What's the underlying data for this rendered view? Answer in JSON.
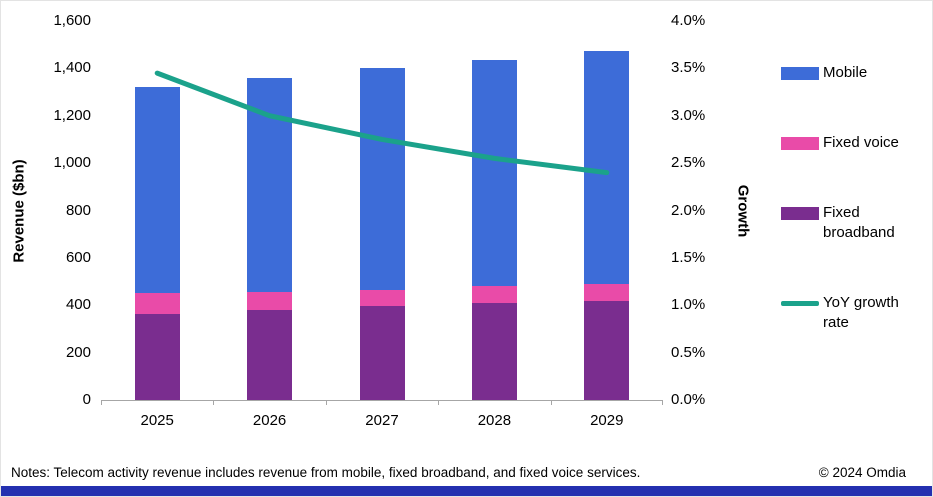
{
  "chart_data": {
    "type": "bar",
    "subtype": "stacked-bar-with-line",
    "title": "",
    "categories": [
      "2025",
      "2026",
      "2027",
      "2028",
      "2029"
    ],
    "bar_series": [
      {
        "name": "Fixed broadband",
        "color": "#7A2D8F",
        "values": [
          365,
          380,
          395,
          410,
          420
        ]
      },
      {
        "name": "Fixed voice",
        "color": "#E94BA8",
        "values": [
          85,
          75,
          70,
          70,
          70
        ]
      },
      {
        "name": "Mobile",
        "color": "#3D6CD8",
        "values": [
          870,
          905,
          935,
          955,
          985
        ]
      }
    ],
    "line_series": {
      "name": "YoY growth rate",
      "color": "#1BA28B",
      "values": [
        3.45,
        3.0,
        2.75,
        2.55,
        2.4
      ]
    },
    "left_axis": {
      "title": "Revenue ($bn)",
      "min": 0,
      "max": 1600,
      "tick_labels": [
        "0",
        "200",
        "400",
        "600",
        "800",
        "1,000",
        "1,200",
        "1,400",
        "1,600"
      ]
    },
    "right_axis": {
      "title": "Growth",
      "min": 0,
      "max": 4,
      "tick_labels": [
        "0.0%",
        "0.5%",
        "1.0%",
        "1.5%",
        "2.0%",
        "2.5%",
        "3.0%",
        "3.5%",
        "4.0%"
      ]
    },
    "legend_position": "right",
    "grid": false,
    "legend": [
      {
        "label": "Mobile",
        "type": "swatch",
        "color": "#3D6CD8"
      },
      {
        "label": "Fixed voice",
        "type": "swatch",
        "color": "#E94BA8"
      },
      {
        "label": "Fixed broadband",
        "type": "swatch",
        "color": "#7A2D8F"
      },
      {
        "label": "YoY growth rate",
        "type": "line",
        "color": "#1BA28B"
      }
    ]
  },
  "footer": {
    "notes": "Notes: Telecom activity revenue includes revenue from mobile, fixed broadband, and fixed voice services.",
    "copyright": "© 2024 Omdia",
    "bar_color": "#2430B0"
  }
}
